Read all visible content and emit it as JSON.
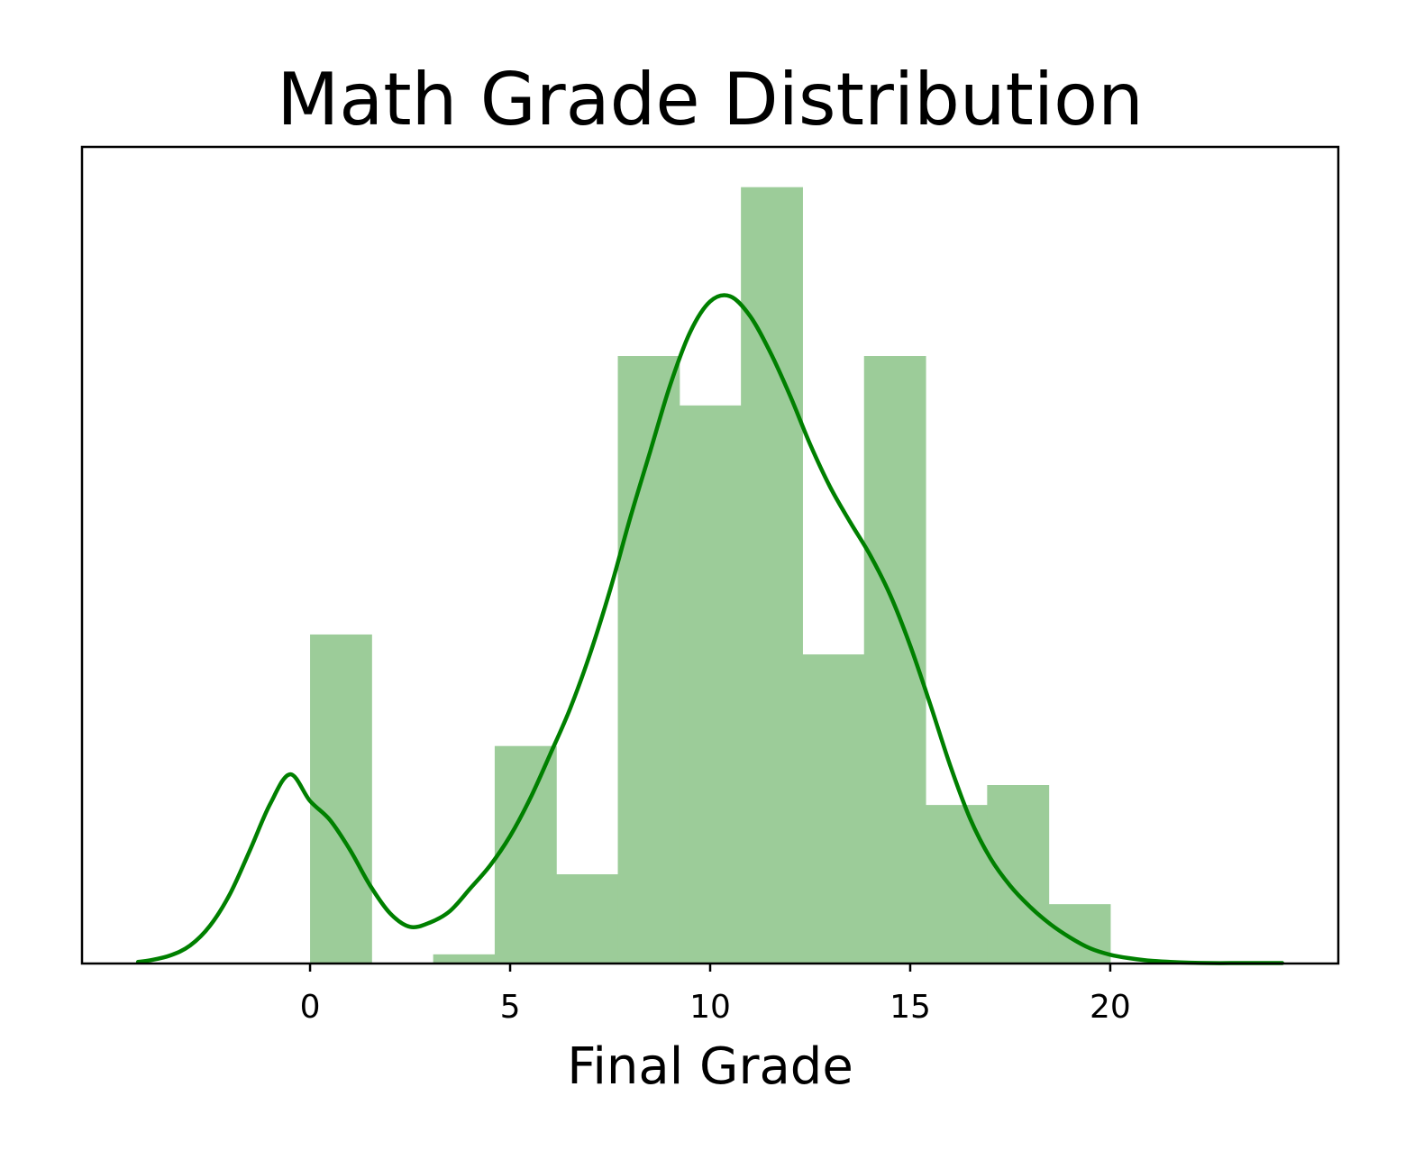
{
  "chart_data": {
    "type": "bar",
    "title": "Math Grade Distribution",
    "xlabel": "Final Grade",
    "ylabel": "",
    "xlim": [
      -5.7,
      25.7
    ],
    "ylim": [
      0,
      0.205
    ],
    "grid": false,
    "legend": "none",
    "y_ticks_shown": false,
    "x_ticks": [
      0,
      5,
      10,
      15,
      20
    ],
    "x_tick_labels": [
      "0",
      "5",
      "10",
      "15",
      "20"
    ],
    "histogram": {
      "bin_edges": [
        0,
        1.538,
        3.077,
        4.615,
        6.154,
        7.692,
        9.231,
        10.769,
        12.308,
        13.846,
        15.385,
        16.923,
        18.462,
        20
      ],
      "density": [
        0.0826,
        0,
        0.0023,
        0.0546,
        0.0224,
        0.1525,
        0.1401,
        0.1949,
        0.0776,
        0.1525,
        0.0398,
        0.0448,
        0.0149
      ]
    },
    "kde": {
      "x": [
        -4.3,
        -4,
        -3.5,
        -3,
        -2.5,
        -2,
        -1.5,
        -1,
        -0.5,
        0,
        0.5,
        1,
        1.5,
        2,
        2.5,
        3,
        3.5,
        4,
        4.5,
        5,
        5.5,
        6,
        6.5,
        7,
        7.5,
        8,
        8.5,
        9,
        9.5,
        10,
        10.5,
        11,
        11.5,
        12,
        12.5,
        13,
        13.5,
        14,
        14.5,
        15,
        15.5,
        16,
        16.5,
        17,
        17.5,
        18,
        18.5,
        19,
        19.5,
        20,
        20.5,
        21,
        21.5,
        22,
        22.5,
        23,
        23.5,
        24,
        24.3
      ],
      "y": [
        0.0004,
        0.0008,
        0.002,
        0.0045,
        0.0095,
        0.0175,
        0.0285,
        0.04,
        0.0475,
        0.0408,
        0.036,
        0.0285,
        0.0196,
        0.0126,
        0.0092,
        0.0103,
        0.0132,
        0.0188,
        0.0246,
        0.032,
        0.0414,
        0.0525,
        0.064,
        0.0778,
        0.0938,
        0.1118,
        0.1285,
        0.1452,
        0.1585,
        0.1662,
        0.1675,
        0.1625,
        0.1535,
        0.1425,
        0.1303,
        0.1196,
        0.1108,
        0.1025,
        0.0925,
        0.0798,
        0.0651,
        0.0497,
        0.0363,
        0.0265,
        0.0195,
        0.0142,
        0.0099,
        0.0065,
        0.0038,
        0.0022,
        0.0013,
        0.0007,
        0.0004,
        0.0002,
        0.0001,
        0.0001,
        0.0001,
        0.0001,
        0.0001
      ]
    },
    "colors": {
      "bar": "#9ccc99",
      "kde": "#008000",
      "frame": "#000000"
    }
  }
}
